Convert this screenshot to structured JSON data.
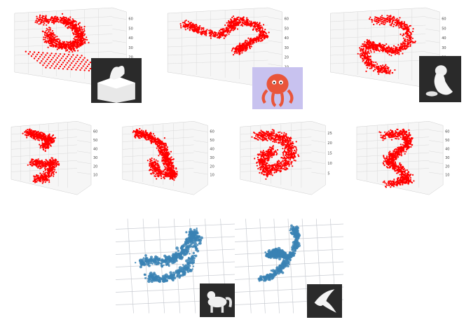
{
  "chart_data": [
    {
      "type": "scatter",
      "row": 1,
      "style": "3d-scatter",
      "shape": "blob-rectangle",
      "color": "#ff0000",
      "grid": true,
      "z_ticks": [
        "10",
        "20",
        "30",
        "40",
        "50",
        "60"
      ],
      "thumbnail": "dragon-on-cube"
    },
    {
      "type": "scatter",
      "row": 1,
      "style": "3d-scatter",
      "shape": "wave",
      "color": "#ff0000",
      "grid": true,
      "z_ticks": [
        "10",
        "20",
        "30",
        "40",
        "50",
        "60"
      ],
      "thumbnail": "octopus"
    },
    {
      "type": "scatter",
      "row": 1,
      "style": "3d-scatter",
      "shape": "arc",
      "color": "#ff0000",
      "grid": true,
      "z_ticks": [
        "10",
        "20",
        "30",
        "40",
        "50",
        "60"
      ],
      "thumbnail": "seal"
    },
    {
      "type": "scatter",
      "row": 2,
      "style": "3d-scatter",
      "shape": "two-clusters",
      "color": "#ff0000",
      "grid": true,
      "z_ticks": [
        "10",
        "20",
        "30",
        "40",
        "50",
        "60"
      ]
    },
    {
      "type": "scatter",
      "row": 2,
      "style": "3d-scatter",
      "shape": "diagonal",
      "color": "#ff0000",
      "grid": true,
      "z_ticks": [
        "10",
        "20",
        "30",
        "40",
        "50",
        "60"
      ]
    },
    {
      "type": "scatter",
      "row": 2,
      "style": "3d-scatter",
      "shape": "cloud",
      "color": "#ff0000",
      "grid": true,
      "z_ticks": [
        "5",
        "10",
        "15",
        "20",
        "25"
      ]
    },
    {
      "type": "scatter",
      "row": 2,
      "style": "3d-scatter",
      "shape": "column",
      "color": "#ff0000",
      "grid": true,
      "z_ticks": [
        "10",
        "20",
        "30",
        "40",
        "50",
        "60"
      ]
    },
    {
      "type": "scatter",
      "row": 3,
      "style": "3d-scatter-perspective",
      "shape": "horse",
      "color": "#3a82b4",
      "grid": true,
      "z_ticks": [],
      "thumbnail": "horse"
    },
    {
      "type": "scatter",
      "row": 3,
      "style": "3d-scatter-perspective",
      "shape": "bird",
      "color": "#3a82b4",
      "grid": true,
      "z_ticks": [],
      "thumbnail": "bird"
    }
  ]
}
